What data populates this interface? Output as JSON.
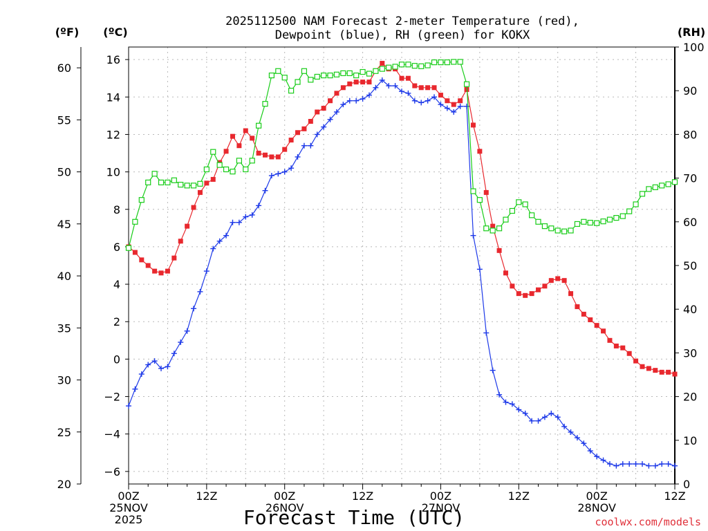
{
  "chart_data": {
    "type": "line",
    "title": [
      "2025112500 NAM Forecast 2-meter Temperature (red),",
      "Dewpoint (blue), RH (green) for KOKX"
    ],
    "xlabel": "Forecast Time (UTC)",
    "credit": "coolwx.com/models",
    "axes": {
      "left_outer": {
        "label": "(ºF)",
        "ylim": [
          20,
          62
        ],
        "ticks": [
          "20",
          "25",
          "30",
          "35",
          "40",
          "45",
          "50",
          "55",
          "60"
        ]
      },
      "left_inner": {
        "label": "(ºC)",
        "ylim": [
          -6.67,
          16.67
        ],
        "ticks": [
          "-6",
          "-4",
          "-2",
          "0",
          "2",
          "4",
          "6",
          "8",
          "10",
          "12",
          "14",
          "16"
        ]
      },
      "right": {
        "label": "(RH)",
        "ylim": [
          0,
          100
        ],
        "ticks": [
          "0",
          "10",
          "20",
          "30",
          "40",
          "50",
          "60",
          "70",
          "80",
          "90",
          "100"
        ]
      }
    },
    "x": {
      "unit": "forecast hour from 2025-11-25 00Z",
      "range": [
        0,
        84
      ],
      "ticks": [
        {
          "h": 0,
          "lines": [
            "00Z",
            "25NOV",
            "2025"
          ]
        },
        {
          "h": 12,
          "lines": [
            "12Z"
          ]
        },
        {
          "h": 24,
          "lines": [
            "00Z",
            "26NOV"
          ]
        },
        {
          "h": 36,
          "lines": [
            "12Z"
          ]
        },
        {
          "h": 48,
          "lines": [
            "00Z",
            "27NOV"
          ]
        },
        {
          "h": 60,
          "lines": [
            "12Z"
          ]
        },
        {
          "h": 72,
          "lines": [
            "00Z",
            "28NOV"
          ]
        },
        {
          "h": 84,
          "lines": [
            "12Z"
          ]
        }
      ]
    },
    "grid": true,
    "series": [
      {
        "name": "Temperature",
        "axis": "left_inner",
        "color": "#e8282e",
        "marker": "filled-square",
        "hours": [
          0,
          1,
          2,
          3,
          4,
          5,
          6,
          7,
          8,
          9,
          10,
          11,
          12,
          13,
          14,
          15,
          16,
          17,
          18,
          19,
          20,
          21,
          22,
          23,
          24,
          25,
          26,
          27,
          28,
          29,
          30,
          31,
          32,
          33,
          34,
          35,
          36,
          37,
          38,
          39,
          40,
          41,
          42,
          43,
          44,
          45,
          46,
          47,
          48,
          49,
          50,
          51,
          52,
          53,
          54,
          55,
          56,
          57,
          58,
          59,
          60,
          61,
          62,
          63,
          64,
          65,
          66,
          67,
          68,
          69,
          70,
          71,
          72,
          73,
          74,
          75,
          76,
          77,
          78,
          79,
          80,
          81,
          82,
          83,
          84
        ],
        "values": [
          6.0,
          5.7,
          5.3,
          5.0,
          4.7,
          4.6,
          4.7,
          5.4,
          6.3,
          7.1,
          8.1,
          8.9,
          9.4,
          9.6,
          10.5,
          11.1,
          11.9,
          11.4,
          12.2,
          11.8,
          11.0,
          10.9,
          10.8,
          10.8,
          11.2,
          11.7,
          12.1,
          12.3,
          12.7,
          13.2,
          13.4,
          13.8,
          14.2,
          14.5,
          14.7,
          14.8,
          14.8,
          14.8,
          15.4,
          15.8,
          15.5,
          15.5,
          15.0,
          15.0,
          14.6,
          14.5,
          14.5,
          14.5,
          14.1,
          13.8,
          13.6,
          13.8,
          14.4,
          12.5,
          11.1,
          8.9,
          7.1,
          5.8,
          4.6,
          3.9,
          3.5,
          3.4,
          3.5,
          3.7,
          3.9,
          4.2,
          4.3,
          4.2,
          3.5,
          2.8,
          2.4,
          2.1,
          1.8,
          1.5,
          1.0,
          0.7,
          0.6,
          0.3,
          -0.1,
          -0.4,
          -0.5,
          -0.6,
          -0.7,
          -0.7,
          -0.8
        ]
      },
      {
        "name": "Dewpoint",
        "axis": "left_inner",
        "color": "#1c38e8",
        "marker": "plus",
        "hours": [
          0,
          1,
          2,
          3,
          4,
          5,
          6,
          7,
          8,
          9,
          10,
          11,
          12,
          13,
          14,
          15,
          16,
          17,
          18,
          19,
          20,
          21,
          22,
          23,
          24,
          25,
          26,
          27,
          28,
          29,
          30,
          31,
          32,
          33,
          34,
          35,
          36,
          37,
          38,
          39,
          40,
          41,
          42,
          43,
          44,
          45,
          46,
          47,
          48,
          49,
          50,
          51,
          52,
          53,
          54,
          55,
          56,
          57,
          58,
          59,
          60,
          61,
          62,
          63,
          64,
          65,
          66,
          67,
          68,
          69,
          70,
          71,
          72,
          73,
          74,
          75,
          76,
          77,
          78,
          79,
          80,
          81,
          82,
          83,
          84
        ],
        "values": [
          -2.5,
          -1.6,
          -0.8,
          -0.3,
          -0.1,
          -0.5,
          -0.4,
          0.3,
          0.9,
          1.5,
          2.7,
          3.6,
          4.7,
          5.9,
          6.3,
          6.6,
          7.3,
          7.3,
          7.6,
          7.7,
          8.2,
          9.0,
          9.8,
          9.9,
          10.0,
          10.2,
          10.8,
          11.4,
          11.4,
          12.0,
          12.4,
          12.8,
          13.2,
          13.6,
          13.8,
          13.8,
          13.9,
          14.1,
          14.5,
          14.9,
          14.6,
          14.6,
          14.3,
          14.2,
          13.8,
          13.7,
          13.8,
          14.0,
          13.6,
          13.4,
          13.2,
          13.5,
          13.5,
          6.6,
          4.8,
          1.4,
          -0.6,
          -1.9,
          -2.3,
          -2.4,
          -2.7,
          -2.9,
          -3.3,
          -3.3,
          -3.1,
          -2.9,
          -3.1,
          -3.6,
          -3.9,
          -4.2,
          -4.5,
          -4.9,
          -5.2,
          -5.4,
          -5.6,
          -5.7,
          -5.6,
          -5.6,
          -5.6,
          -5.6,
          -5.7,
          -5.7,
          -5.6,
          -5.6,
          -5.7
        ]
      },
      {
        "name": "RH",
        "axis": "right",
        "color": "#18cc18",
        "marker": "open-square",
        "hours": [
          0,
          1,
          2,
          3,
          4,
          5,
          6,
          7,
          8,
          9,
          10,
          11,
          12,
          13,
          14,
          15,
          16,
          17,
          18,
          19,
          20,
          21,
          22,
          23,
          24,
          25,
          26,
          27,
          28,
          29,
          30,
          31,
          32,
          33,
          34,
          35,
          36,
          37,
          38,
          39,
          40,
          41,
          42,
          43,
          44,
          45,
          46,
          47,
          48,
          49,
          50,
          51,
          52,
          53,
          54,
          55,
          56,
          57,
          58,
          59,
          60,
          61,
          62,
          63,
          64,
          65,
          66,
          67,
          68,
          69,
          70,
          71,
          72,
          73,
          74,
          75,
          76,
          77,
          78,
          79,
          80,
          81,
          82,
          83,
          84
        ],
        "values": [
          54,
          60,
          65,
          69,
          71,
          69,
          69,
          69.5,
          68.5,
          68.3,
          68.3,
          68.7,
          72,
          76,
          73,
          72,
          71.5,
          74,
          72,
          74,
          82,
          87,
          93.5,
          94.5,
          93,
          90,
          92,
          94.5,
          92.5,
          93.2,
          93.5,
          93.5,
          93.7,
          94,
          94,
          93.5,
          94.3,
          93.9,
          94.5,
          95,
          95.3,
          95.5,
          96,
          96,
          95.7,
          95.6,
          95.8,
          96.5,
          96.5,
          96.5,
          96.6,
          96.6,
          91.5,
          67,
          65,
          58.5,
          58,
          58.5,
          60.5,
          62.5,
          64.5,
          64,
          61.5,
          60,
          59,
          58.5,
          58,
          57.8,
          58,
          59.5,
          60,
          59.8,
          59.7,
          60.1,
          60.5,
          60.9,
          61.3,
          62.4,
          64,
          66.4,
          67.5,
          67.9,
          68.3,
          68.6,
          69.1
        ]
      }
    ]
  }
}
